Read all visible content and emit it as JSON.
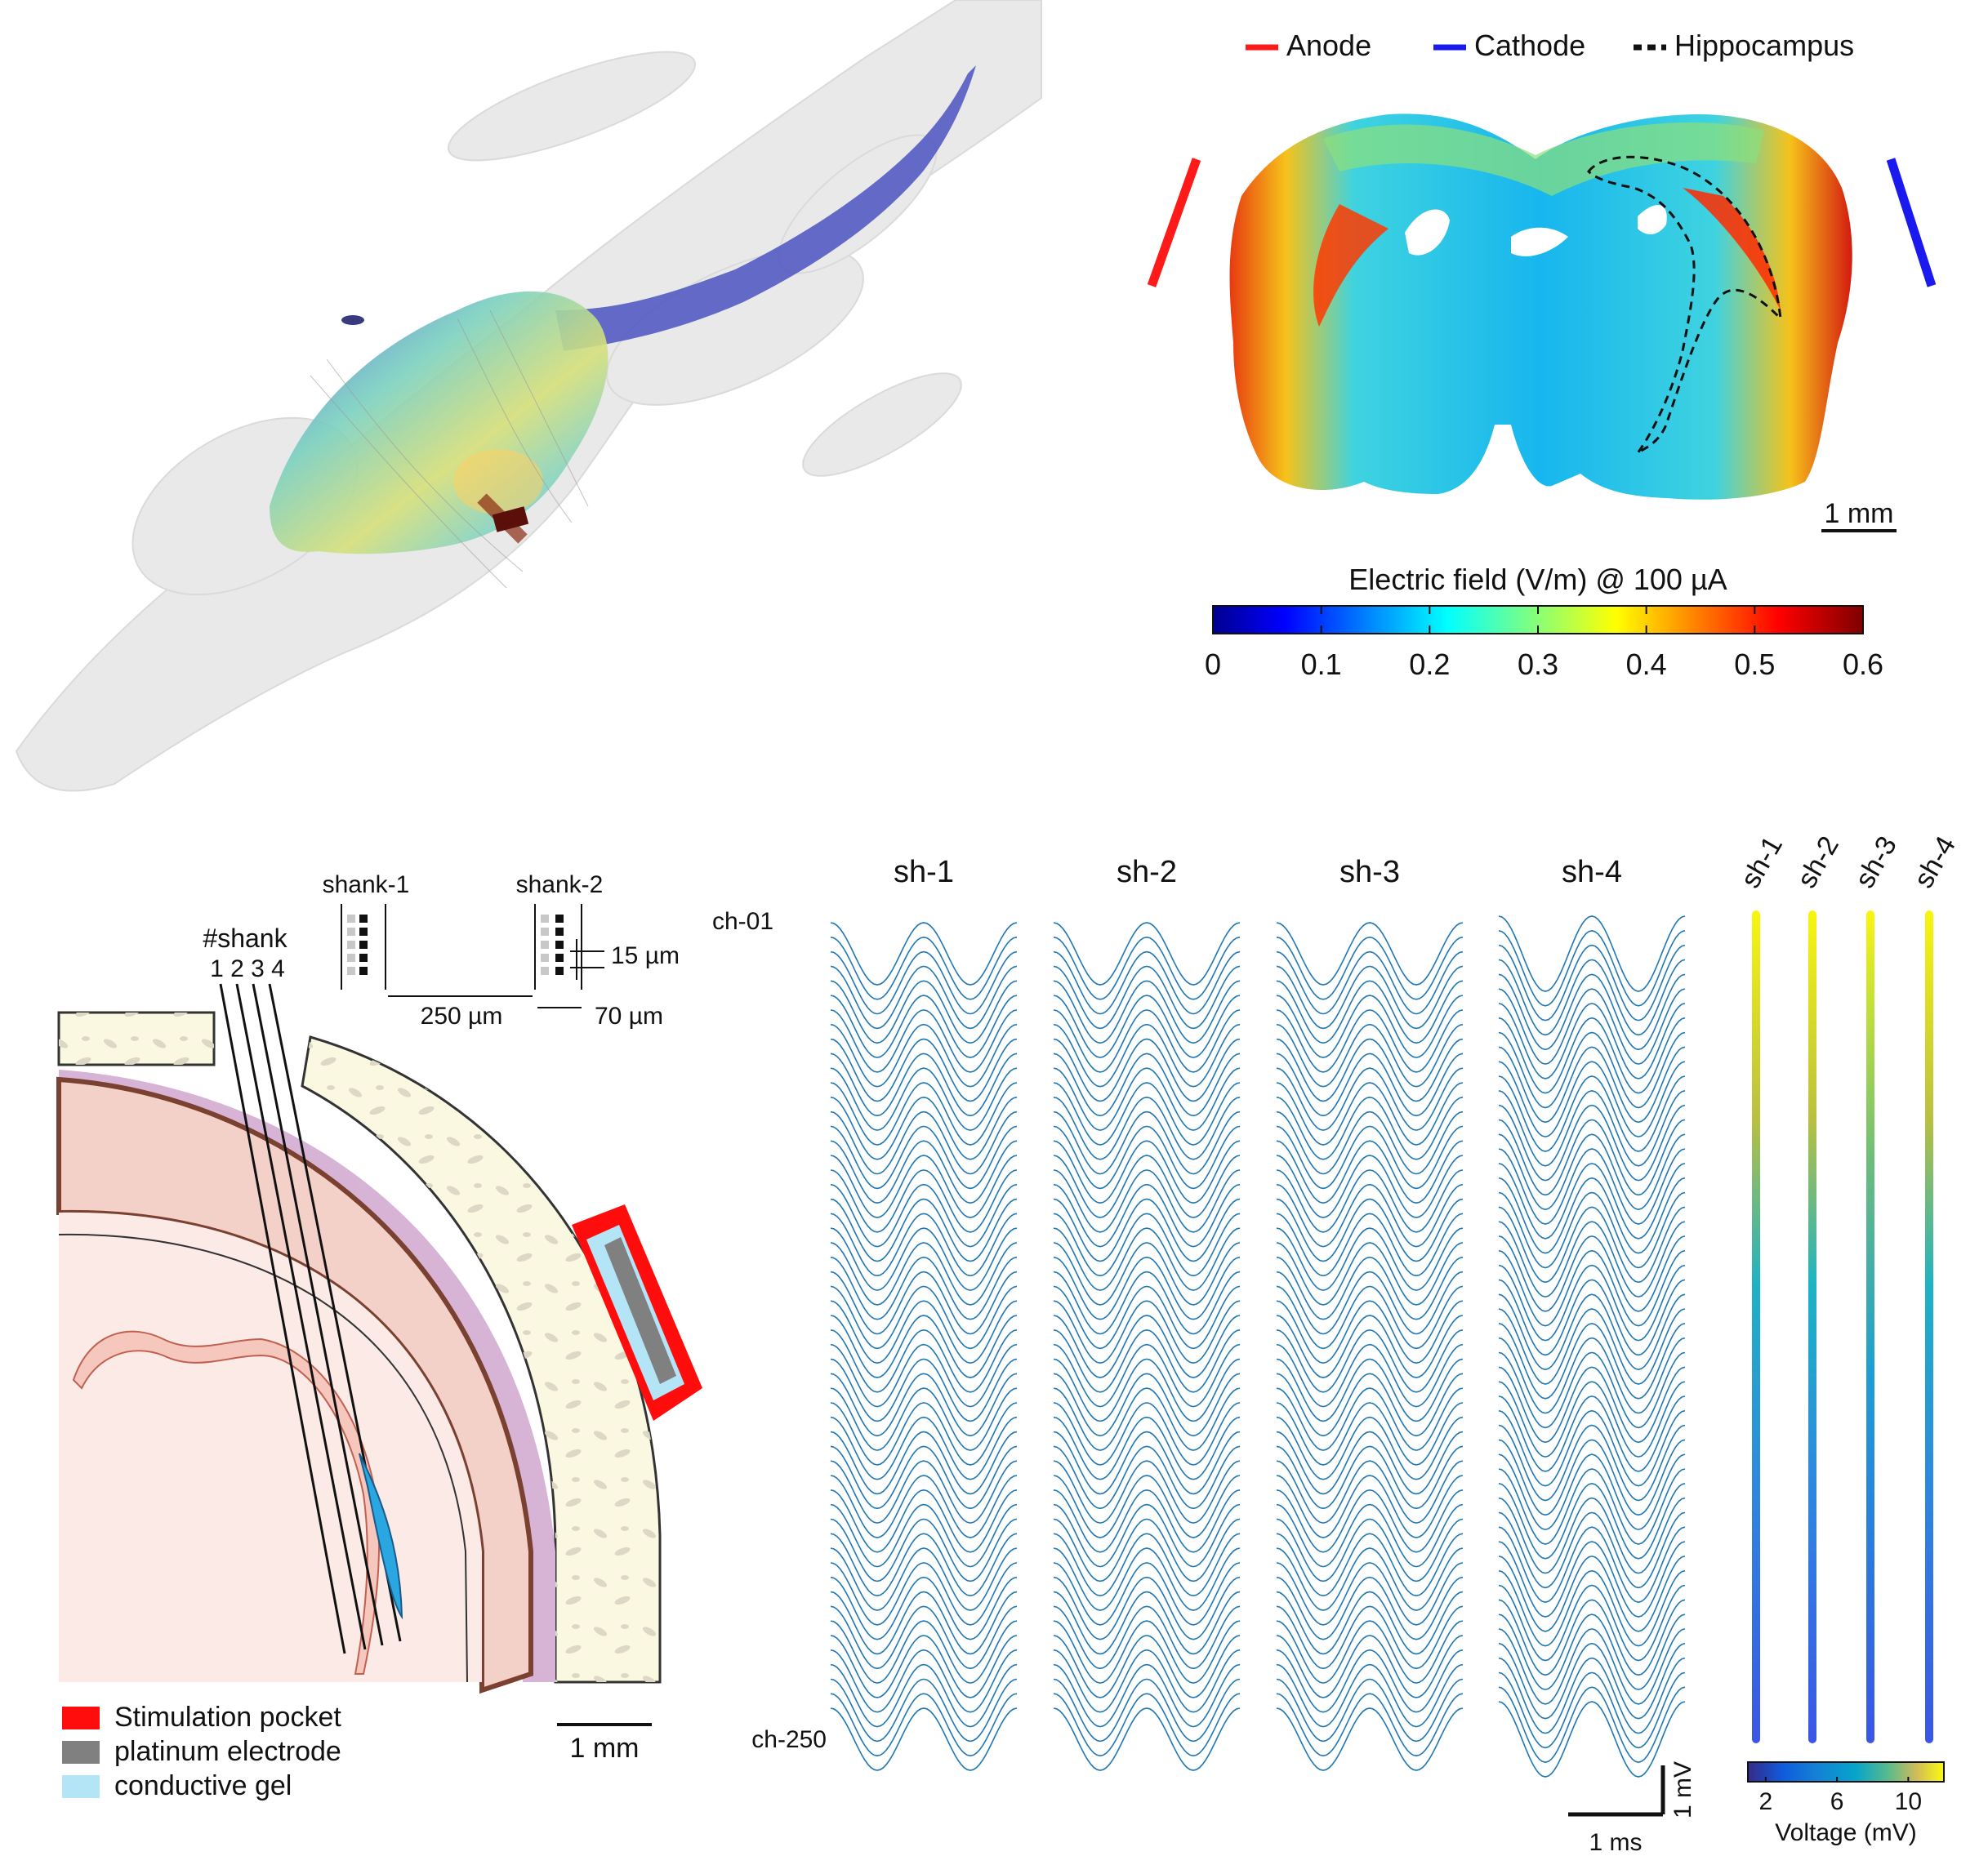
{
  "panel_a": {
    "icon": "rat-skeleton-3d-render"
  },
  "panel_b": {
    "legend": {
      "anode": "Anode",
      "cathode": "Cathode",
      "hippocampus": "Hippocampus",
      "colors": {
        "anode": "#ff1a1a",
        "cathode": "#1a1aee",
        "hippocampus": "#111111"
      }
    },
    "scale_bar": "1 mm",
    "colorbar": {
      "title": "Electric field (V/m) @ 100 µA",
      "ticks": [
        "0",
        "0.1",
        "0.2",
        "0.3",
        "0.4",
        "0.5",
        "0.6"
      ],
      "range": [
        0,
        0.6
      ],
      "colormap": "jet"
    }
  },
  "panel_c": {
    "shank_header": "#shank",
    "shank_numbers": "1 2 3 4",
    "shank1": "shank-1",
    "shank2": "shank-2",
    "dim_15": "15 µm",
    "dim_250": "250 µm",
    "dim_70": "70 µm",
    "legend": {
      "stim": "Stimulation pocket",
      "platinum": "platinum electrode",
      "gel": "conductive gel",
      "colors": {
        "stim": "#ff0d0d",
        "platinum": "#808080",
        "gel": "#b3e5f7"
      }
    },
    "scale_bar": "1 mm"
  },
  "panel_d": {
    "shanks": [
      "sh-1",
      "sh-2",
      "sh-3",
      "sh-4"
    ],
    "ch_top": "ch-01",
    "ch_bottom": "ch-250",
    "scale_x": "1 ms",
    "scale_y": "1 mV",
    "trace_color": "#1f77b4"
  },
  "panel_e": {
    "shanks": [
      "sh-1",
      "sh-2",
      "sh-3",
      "sh-4"
    ],
    "colorbar_title": "Voltage (mV)",
    "colorbar_ticks": [
      "2",
      "6",
      "10"
    ],
    "colormap": "parula",
    "colorbar_range": [
      1,
      12
    ]
  }
}
